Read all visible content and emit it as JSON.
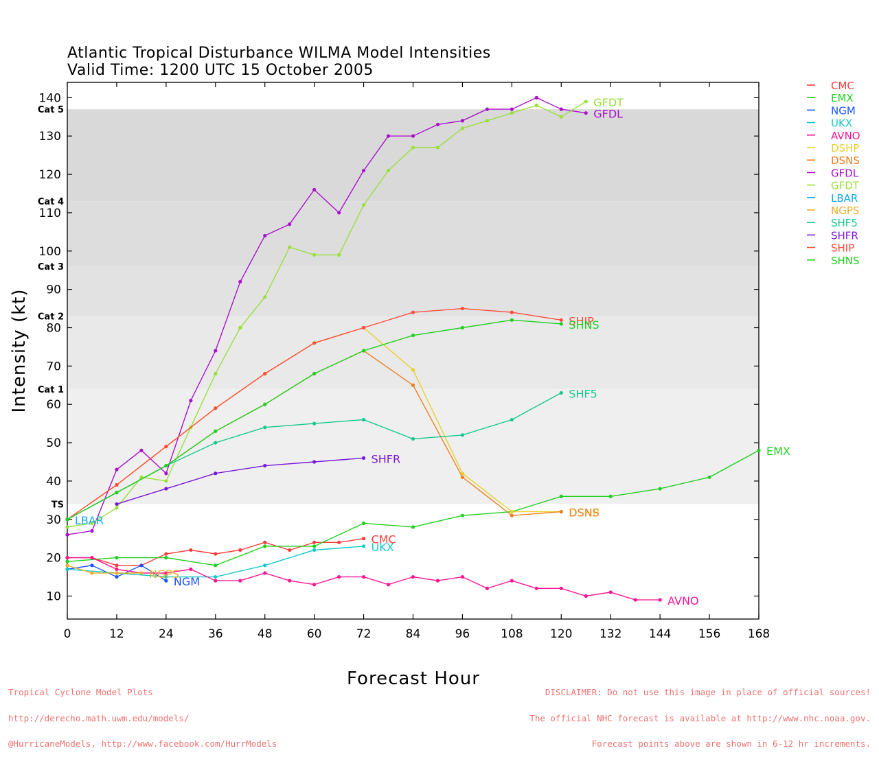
{
  "title_line1": "Atlantic Tropical Disturbance WILMA Model Intensities",
  "title_line2": "Valid Time: 1200 UTC 15 October 2005",
  "footer_left": {
    "line1": "Tropical Cyclone Model Plots",
    "line2": "http://derecho.math.uwm.edu/models/",
    "line3": "@HurricaneModels, http://www.facebook.com/HurrModels"
  },
  "footer_right": {
    "line1": "DISCLAIMER: Do not use this image in place of official sources!",
    "line2": "The official NHC forecast is available at http://www.nhc.noaa.gov.",
    "line3": "Forecast points above are shown in 6-12 hr increments."
  },
  "chart_data": {
    "type": "line",
    "xlabel": "Forecast Hour",
    "ylabel": "Intensity (kt)",
    "xlim": [
      0,
      168
    ],
    "ylim": [
      4,
      144
    ],
    "xticks": [
      0,
      12,
      24,
      36,
      48,
      60,
      72,
      84,
      96,
      108,
      120,
      132,
      144,
      156,
      168
    ],
    "yticks": [
      10,
      20,
      30,
      40,
      50,
      60,
      70,
      80,
      90,
      100,
      110,
      120,
      130,
      140
    ],
    "grid": false,
    "legend_position": "right, outside plot",
    "categories": [
      {
        "label": "TS",
        "min": 34,
        "max": 64,
        "color": "#efefef"
      },
      {
        "label": "Cat 1",
        "min": 64,
        "max": 83,
        "color": "#e9e9e9"
      },
      {
        "label": "Cat 2",
        "min": 83,
        "max": 96,
        "color": "#e2e2e2"
      },
      {
        "label": "Cat 3",
        "min": 96,
        "max": 113,
        "color": "#dddddd"
      },
      {
        "label": "Cat 4",
        "min": 113,
        "max": 137,
        "color": "#d9d9d9"
      },
      {
        "label": "Cat 5",
        "min": 137,
        "max": 144,
        "color": "#ffffff"
      }
    ],
    "series": [
      {
        "name": "CMC",
        "color": "#ff3b3b",
        "label_dy": 0,
        "x": [
          0,
          6,
          12,
          18,
          24,
          30,
          36,
          42,
          48,
          54,
          60,
          66,
          72
        ],
        "y": [
          20,
          20,
          18,
          18,
          21,
          22,
          21,
          22,
          24,
          22,
          24,
          24,
          25
        ]
      },
      {
        "name": "EMX",
        "color": "#1fd01f",
        "label_dy": 0,
        "x": [
          0,
          12,
          24,
          36,
          48,
          60,
          72,
          84,
          96,
          108,
          120,
          132,
          144,
          156,
          168
        ],
        "y": [
          19,
          20,
          20,
          18,
          23,
          23,
          29,
          28,
          31,
          32,
          36,
          36,
          38,
          41,
          48
        ]
      },
      {
        "name": "NGM",
        "color": "#1a52ff",
        "label_dy": 0,
        "x": [
          0,
          6,
          12,
          18,
          24
        ],
        "y": [
          17,
          18,
          15,
          18,
          14
        ]
      },
      {
        "name": "UKX",
        "color": "#12c8c8",
        "label_dy": 0,
        "x": [
          0,
          12,
          24,
          36,
          48,
          60,
          72
        ],
        "y": [
          17,
          16,
          15,
          15,
          18,
          22,
          23
        ]
      },
      {
        "name": "AVNO",
        "color": "#ff1493",
        "label_dy": 0,
        "x": [
          0,
          6,
          12,
          18,
          24,
          30,
          36,
          42,
          48,
          54,
          60,
          66,
          72,
          78,
          84,
          90,
          96,
          102,
          108,
          114,
          120,
          126,
          132,
          138,
          144
        ],
        "y": [
          20,
          20,
          17,
          16,
          16,
          17,
          14,
          14,
          16,
          14,
          13,
          15,
          15,
          13,
          15,
          14,
          15,
          12,
          14,
          12,
          12,
          10,
          11,
          9,
          9
        ]
      },
      {
        "name": "DSHP",
        "color": "#e8d028",
        "label_dy": 0,
        "x": [
          0,
          12,
          24,
          36,
          48,
          60,
          72,
          84,
          96,
          108,
          120
        ],
        "y": [
          30,
          39,
          49,
          59,
          68,
          76,
          80,
          69,
          42,
          32,
          32
        ]
      },
      {
        "name": "DSNS",
        "color": "#f07e1e",
        "label_dy": 0,
        "x": [
          0,
          12,
          24,
          36,
          48,
          60,
          72,
          84,
          96,
          108,
          120
        ],
        "y": [
          30,
          37,
          44,
          53,
          60,
          68,
          74,
          65,
          41,
          31,
          32
        ]
      },
      {
        "name": "GFDL",
        "color": "#aa10cc",
        "label_dy": 0,
        "x": [
          0,
          6,
          12,
          18,
          24,
          30,
          36,
          42,
          48,
          54,
          60,
          66,
          72,
          78,
          84,
          90,
          96,
          102,
          108,
          114,
          120,
          126
        ],
        "y": [
          26,
          27,
          43,
          48,
          42,
          61,
          74,
          92,
          104,
          107,
          116,
          110,
          121,
          130,
          130,
          133,
          134,
          137,
          137,
          140,
          137,
          136
        ]
      },
      {
        "name": "GFDT",
        "color": "#98e038",
        "label_dy": 0,
        "x": [
          0,
          6,
          12,
          18,
          24,
          30,
          36,
          42,
          48,
          54,
          60,
          66,
          72,
          78,
          84,
          90,
          96,
          102,
          108,
          114,
          120,
          126
        ],
        "y": [
          28,
          29,
          33,
          41,
          40,
          54,
          68,
          80,
          88,
          101,
          99,
          99,
          112,
          121,
          127,
          127,
          132,
          134,
          136,
          138,
          135,
          139
        ]
      },
      {
        "name": "LBAR",
        "color": "#12a8e8",
        "label_dy": 0,
        "x": [
          0
        ],
        "y": [
          30
        ]
      },
      {
        "name": "NGPS",
        "color": "#e8b028",
        "label_dy": 0,
        "x": [
          0,
          6,
          12,
          18
        ],
        "y": [
          18,
          16,
          16,
          16
        ]
      },
      {
        "name": "SHF5",
        "color": "#14c890",
        "label_dy": 0,
        "x": [
          0,
          12,
          24,
          36,
          48,
          60,
          72,
          84,
          96,
          108,
          120
        ],
        "y": [
          30,
          37,
          44,
          50,
          54,
          55,
          56,
          51,
          52,
          56,
          63
        ]
      },
      {
        "name": "SHFR",
        "color": "#7818d8",
        "label_dy": 0,
        "x": [
          12,
          24,
          36,
          48,
          60,
          72
        ],
        "y": [
          34,
          38,
          42,
          44,
          45,
          46
        ]
      },
      {
        "name": "SHIP",
        "color": "#ff4a3a",
        "label_dy": 0,
        "x": [
          0,
          12,
          24,
          36,
          48,
          60,
          72,
          84,
          96,
          108,
          120
        ],
        "y": [
          30,
          39,
          49,
          59,
          68,
          76,
          80,
          84,
          85,
          84,
          82
        ]
      },
      {
        "name": "SHNS",
        "color": "#1fd01f",
        "label_dy": 0,
        "x": [
          0,
          12,
          24,
          36,
          48,
          60,
          72,
          84,
          96,
          108,
          120
        ],
        "y": [
          30,
          37,
          44,
          53,
          60,
          68,
          74,
          78,
          80,
          82,
          81
        ]
      }
    ]
  }
}
